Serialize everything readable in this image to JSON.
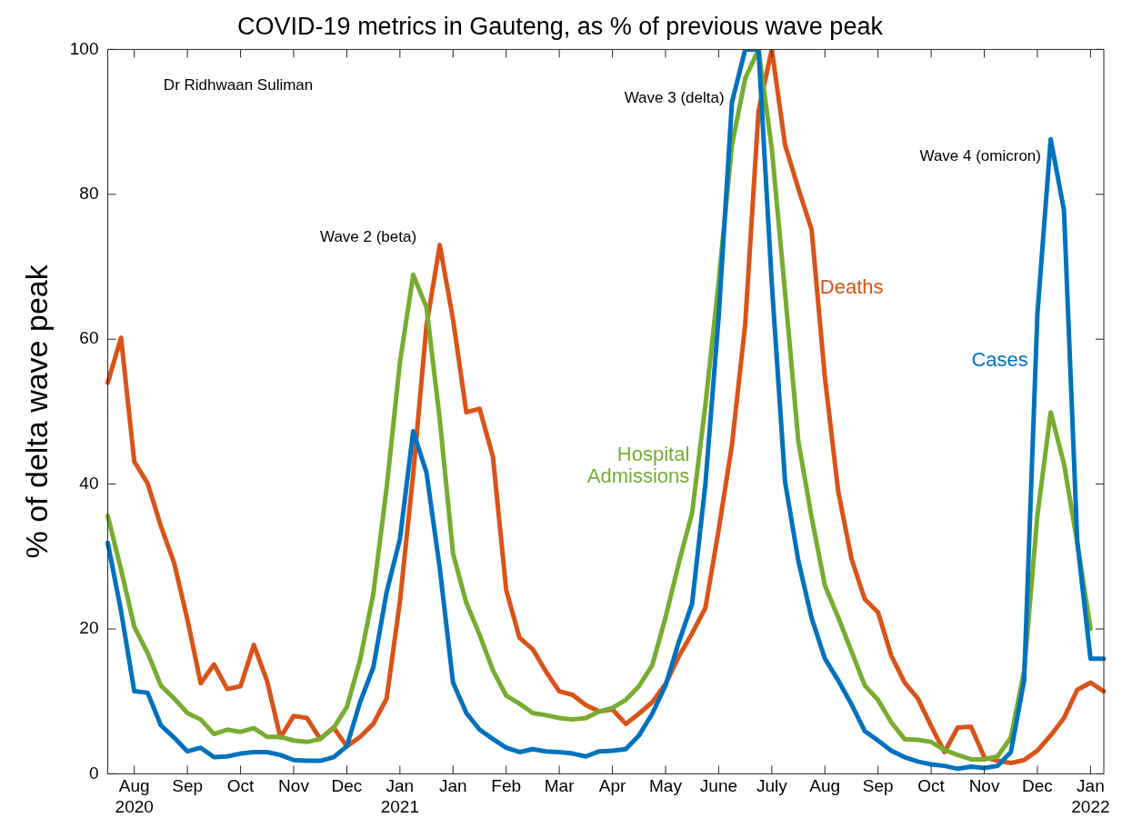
{
  "chart_data": {
    "type": "line",
    "title": "COVID-19 metrics in Gauteng, as % of previous wave peak",
    "ylabel": "% of delta wave peak",
    "categories": [
      null,
      null,
      "Aug\n2020",
      null,
      null,
      null,
      "Sep",
      null,
      null,
      null,
      "Oct",
      null,
      null,
      null,
      "Nov",
      null,
      null,
      null,
      "Dec",
      null,
      null,
      null,
      "Jan\n2021",
      null,
      null,
      null,
      "Jan",
      null,
      null,
      null,
      "Feb",
      null,
      null,
      null,
      "Mar",
      null,
      null,
      null,
      "Apr",
      null,
      null,
      null,
      "May",
      null,
      null,
      null,
      "June",
      null,
      null,
      null,
      "July",
      null,
      null,
      null,
      "Aug",
      null,
      null,
      null,
      "Sep",
      null,
      null,
      null,
      "Oct",
      null,
      null,
      null,
      "Nov",
      null,
      null,
      null,
      "Dec",
      null,
      null,
      null,
      "Jan\n2022",
      null
    ],
    "series": [
      {
        "name": "Cases",
        "color": "#0072bd",
        "values": [
          31.9,
          22.5,
          11.4,
          11.2,
          6.7,
          5.0,
          3.1,
          3.6,
          2.3,
          2.4,
          2.8,
          3.0,
          3.0,
          2.6,
          1.9,
          1.8,
          1.8,
          2.3,
          3.8,
          9.9,
          14.7,
          25.1,
          32.4,
          47.3,
          41.6,
          28.4,
          12.6,
          8.4,
          6.1,
          4.8,
          3.6,
          3.0,
          3.4,
          3.1,
          3.0,
          2.8,
          2.4,
          3.1,
          3.2,
          3.4,
          5.3,
          8.3,
          12.2,
          18.2,
          23.5,
          40.0,
          63.1,
          92.7,
          100,
          100,
          67.7,
          40.3,
          29.4,
          21.5,
          15.9,
          12.9,
          9.6,
          5.9,
          4.6,
          3.2,
          2.3,
          1.7,
          1.3,
          1.1,
          0.7,
          1.0,
          0.8,
          1.1,
          3.0,
          12.9,
          63.5,
          87.6,
          77.8,
          32.1,
          15.9,
          15.9
        ]
      },
      {
        "name": "Hospital Admissions",
        "color": "#77ac30",
        "values": [
          35.6,
          28.2,
          20.3,
          16.7,
          12.2,
          10.4,
          8.4,
          7.5,
          5.5,
          6.1,
          5.8,
          6.3,
          5.1,
          5.1,
          4.6,
          4.4,
          4.8,
          6.3,
          9.2,
          15.7,
          24.9,
          39.5,
          56.8,
          68.9,
          64.4,
          48.9,
          30.4,
          23.6,
          19.2,
          14.3,
          10.8,
          9.7,
          8.4,
          8.1,
          7.7,
          7.5,
          7.7,
          8.6,
          9.1,
          10.2,
          12.1,
          15.0,
          21.6,
          29.1,
          36.0,
          50.9,
          67.9,
          86.8,
          96.0,
          100,
          86.3,
          66.4,
          45.9,
          35.4,
          26.0,
          21.6,
          16.9,
          12.2,
          10.2,
          7.1,
          4.8,
          4.7,
          4.4,
          3.3,
          2.6,
          2.0,
          2.0,
          2.4,
          5.0,
          14.2,
          35.7,
          49.9,
          42.8,
          31.9,
          20.0,
          null
        ]
      },
      {
        "name": "Deaths",
        "color": "#d95319",
        "values": [
          54.0,
          60.2,
          43.1,
          40.1,
          34.2,
          29.1,
          21.3,
          12.5,
          15.1,
          11.7,
          12.1,
          17.8,
          12.8,
          5.0,
          8.0,
          7.7,
          4.8,
          6.4,
          3.8,
          5.1,
          6.9,
          10.4,
          23.8,
          41.4,
          61.9,
          73.0,
          62.7,
          49.9,
          50.4,
          43.8,
          25.4,
          18.8,
          17.2,
          14.1,
          11.4,
          10.9,
          9.5,
          8.6,
          8.9,
          6.9,
          8.3,
          9.9,
          12.4,
          16.2,
          19.4,
          22.9,
          33.7,
          45.4,
          62.1,
          91.5,
          100,
          86.8,
          80.8,
          75.1,
          54.7,
          39.0,
          29.7,
          24.1,
          22.3,
          16.3,
          12.6,
          10.4,
          6.6,
          3.0,
          6.4,
          6.5,
          2.3,
          1.8,
          1.5,
          1.9,
          3.2,
          5.3,
          7.7,
          11.6,
          12.6,
          11.4
        ]
      }
    ],
    "ylim": [
      0,
      100
    ],
    "yticks": [
      0,
      20,
      40,
      60,
      80,
      100
    ],
    "grid": false,
    "legend": false,
    "marker": "none",
    "line_style": "solid",
    "annotations": [
      "Dr Ridhwaan Suliman",
      "Wave 2 (beta)",
      "Wave 3 (delta)",
      "Wave 4 (omicron)"
    ]
  }
}
